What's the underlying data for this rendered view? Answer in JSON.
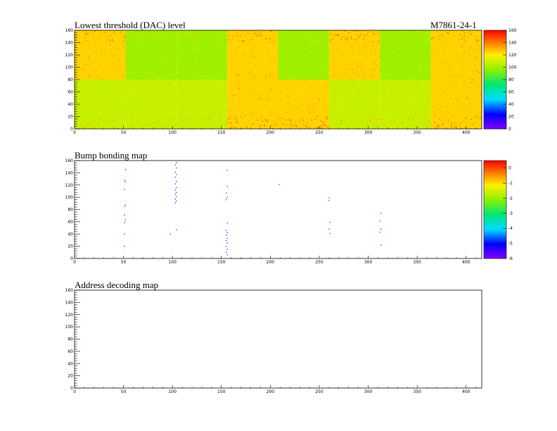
{
  "header": {
    "module_id": "M7861-24-1"
  },
  "chart_data": [
    {
      "type": "heatmap",
      "title": "Lowest threshold (DAC) level",
      "xlim": [
        0,
        416
      ],
      "ylim": [
        0,
        160
      ],
      "x_ticks": [
        0,
        50,
        100,
        150,
        200,
        250,
        300,
        350,
        400
      ],
      "y_ticks": [
        0,
        20,
        40,
        60,
        80,
        100,
        120,
        140,
        160
      ],
      "colorbar": {
        "range": [
          0,
          160
        ],
        "ticks": [
          0,
          20,
          40,
          60,
          80,
          100,
          120,
          140,
          160
        ]
      },
      "rocs": [
        {
          "row": "top",
          "col": 0,
          "level": 125
        },
        {
          "row": "top",
          "col": 1,
          "level": 100
        },
        {
          "row": "top",
          "col": 2,
          "level": 100
        },
        {
          "row": "top",
          "col": 3,
          "level": 125
        },
        {
          "row": "top",
          "col": 4,
          "level": 100
        },
        {
          "row": "top",
          "col": 5,
          "level": 125
        },
        {
          "row": "top",
          "col": 6,
          "level": 100
        },
        {
          "row": "top",
          "col": 7,
          "level": 125
        },
        {
          "row": "bottom",
          "col": 0,
          "level": 108
        },
        {
          "row": "bottom",
          "col": 1,
          "level": 108
        },
        {
          "row": "bottom",
          "col": 2,
          "level": 108
        },
        {
          "row": "bottom",
          "col": 3,
          "level": 125
        },
        {
          "row": "bottom",
          "col": 4,
          "level": 125
        },
        {
          "row": "bottom",
          "col": 5,
          "level": 108
        },
        {
          "row": "bottom",
          "col": 6,
          "level": 108
        },
        {
          "row": "bottom",
          "col": 7,
          "level": 125
        }
      ]
    },
    {
      "type": "scatter",
      "title": "Bump bonding map",
      "xlim": [
        0,
        416
      ],
      "ylim": [
        0,
        160
      ],
      "x_ticks": [
        0,
        50,
        100,
        150,
        200,
        250,
        300,
        350,
        400
      ],
      "y_ticks": [
        0,
        20,
        40,
        60,
        80,
        100,
        120,
        140,
        160
      ],
      "colorbar": {
        "range": [
          -6,
          0.5
        ],
        "ticks": [
          0,
          -1,
          -2,
          -3,
          -4,
          -5,
          -6
        ]
      },
      "points": [
        [
          52,
          145
        ],
        [
          51,
          128
        ],
        [
          52,
          125
        ],
        [
          51,
          113
        ],
        [
          52,
          88
        ],
        [
          51,
          85
        ],
        [
          51,
          71
        ],
        [
          52,
          63
        ],
        [
          51,
          59
        ],
        [
          51,
          40
        ],
        [
          51,
          20
        ],
        [
          104,
          157
        ],
        [
          103,
          153
        ],
        [
          104,
          148
        ],
        [
          103,
          141
        ],
        [
          104,
          137
        ],
        [
          103,
          133
        ],
        [
          104,
          126
        ],
        [
          103,
          122
        ],
        [
          104,
          116
        ],
        [
          103,
          112
        ],
        [
          104,
          108
        ],
        [
          103,
          105
        ],
        [
          104,
          101
        ],
        [
          103,
          97
        ],
        [
          104,
          94
        ],
        [
          103,
          91
        ],
        [
          104,
          47
        ],
        [
          98,
          40
        ],
        [
          156,
          144
        ],
        [
          156,
          118
        ],
        [
          155,
          107
        ],
        [
          156,
          100
        ],
        [
          155,
          96
        ],
        [
          156,
          58
        ],
        [
          155,
          46
        ],
        [
          156,
          42
        ],
        [
          155,
          38
        ],
        [
          156,
          33
        ],
        [
          155,
          29
        ],
        [
          156,
          25
        ],
        [
          155,
          20
        ],
        [
          156,
          15
        ],
        [
          155,
          10
        ],
        [
          156,
          6
        ],
        [
          209,
          121
        ],
        [
          260,
          99
        ],
        [
          260,
          95
        ],
        [
          261,
          59
        ],
        [
          260,
          48
        ],
        [
          261,
          41
        ],
        [
          313,
          74
        ],
        [
          312,
          61
        ],
        [
          313,
          48
        ],
        [
          312,
          43
        ],
        [
          313,
          22
        ]
      ]
    },
    {
      "type": "scatter",
      "title": "Address decoding map",
      "xlim": [
        0,
        416
      ],
      "ylim": [
        0,
        160
      ],
      "x_ticks": [
        0,
        50,
        100,
        150,
        200,
        250,
        300,
        350,
        400
      ],
      "y_ticks": [
        0,
        20,
        40,
        60,
        80,
        100,
        120,
        140,
        160
      ],
      "points": []
    }
  ]
}
